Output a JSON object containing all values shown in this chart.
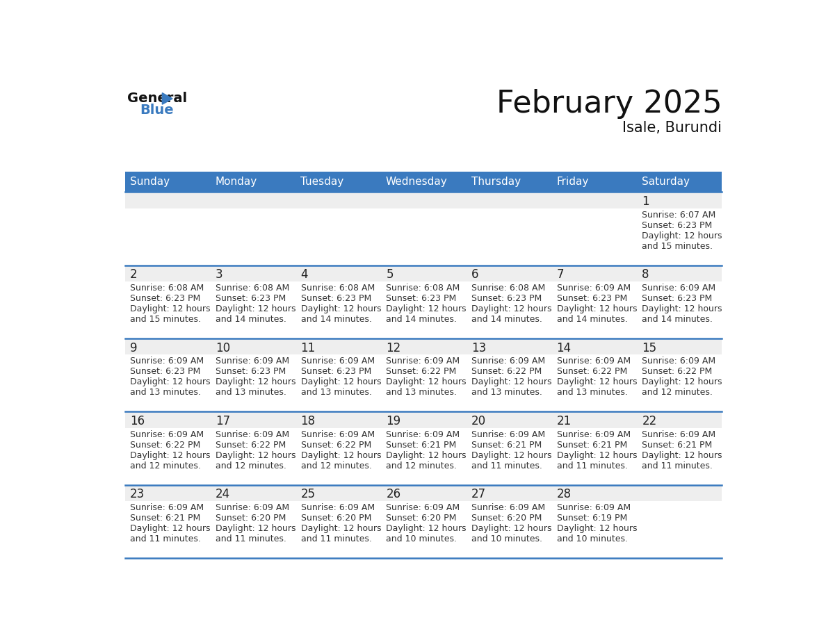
{
  "title": "February 2025",
  "subtitle": "Isale, Burundi",
  "header_bg": "#3a7abf",
  "header_text_color": "#ffffff",
  "cell_bg_gray": "#eeeeee",
  "cell_bg_white": "#ffffff",
  "day_number_color": "#222222",
  "text_color": "#333333",
  "line_color": "#3a7abf",
  "days_of_week": [
    "Sunday",
    "Monday",
    "Tuesday",
    "Wednesday",
    "Thursday",
    "Friday",
    "Saturday"
  ],
  "weeks": [
    [
      {
        "day": null,
        "info": null
      },
      {
        "day": null,
        "info": null
      },
      {
        "day": null,
        "info": null
      },
      {
        "day": null,
        "info": null
      },
      {
        "day": null,
        "info": null
      },
      {
        "day": null,
        "info": null
      },
      {
        "day": 1,
        "info": "Sunrise: 6:07 AM\nSunset: 6:23 PM\nDaylight: 12 hours\nand 15 minutes."
      }
    ],
    [
      {
        "day": 2,
        "info": "Sunrise: 6:08 AM\nSunset: 6:23 PM\nDaylight: 12 hours\nand 15 minutes."
      },
      {
        "day": 3,
        "info": "Sunrise: 6:08 AM\nSunset: 6:23 PM\nDaylight: 12 hours\nand 14 minutes."
      },
      {
        "day": 4,
        "info": "Sunrise: 6:08 AM\nSunset: 6:23 PM\nDaylight: 12 hours\nand 14 minutes."
      },
      {
        "day": 5,
        "info": "Sunrise: 6:08 AM\nSunset: 6:23 PM\nDaylight: 12 hours\nand 14 minutes."
      },
      {
        "day": 6,
        "info": "Sunrise: 6:08 AM\nSunset: 6:23 PM\nDaylight: 12 hours\nand 14 minutes."
      },
      {
        "day": 7,
        "info": "Sunrise: 6:09 AM\nSunset: 6:23 PM\nDaylight: 12 hours\nand 14 minutes."
      },
      {
        "day": 8,
        "info": "Sunrise: 6:09 AM\nSunset: 6:23 PM\nDaylight: 12 hours\nand 14 minutes."
      }
    ],
    [
      {
        "day": 9,
        "info": "Sunrise: 6:09 AM\nSunset: 6:23 PM\nDaylight: 12 hours\nand 13 minutes."
      },
      {
        "day": 10,
        "info": "Sunrise: 6:09 AM\nSunset: 6:23 PM\nDaylight: 12 hours\nand 13 minutes."
      },
      {
        "day": 11,
        "info": "Sunrise: 6:09 AM\nSunset: 6:23 PM\nDaylight: 12 hours\nand 13 minutes."
      },
      {
        "day": 12,
        "info": "Sunrise: 6:09 AM\nSunset: 6:22 PM\nDaylight: 12 hours\nand 13 minutes."
      },
      {
        "day": 13,
        "info": "Sunrise: 6:09 AM\nSunset: 6:22 PM\nDaylight: 12 hours\nand 13 minutes."
      },
      {
        "day": 14,
        "info": "Sunrise: 6:09 AM\nSunset: 6:22 PM\nDaylight: 12 hours\nand 13 minutes."
      },
      {
        "day": 15,
        "info": "Sunrise: 6:09 AM\nSunset: 6:22 PM\nDaylight: 12 hours\nand 12 minutes."
      }
    ],
    [
      {
        "day": 16,
        "info": "Sunrise: 6:09 AM\nSunset: 6:22 PM\nDaylight: 12 hours\nand 12 minutes."
      },
      {
        "day": 17,
        "info": "Sunrise: 6:09 AM\nSunset: 6:22 PM\nDaylight: 12 hours\nand 12 minutes."
      },
      {
        "day": 18,
        "info": "Sunrise: 6:09 AM\nSunset: 6:22 PM\nDaylight: 12 hours\nand 12 minutes."
      },
      {
        "day": 19,
        "info": "Sunrise: 6:09 AM\nSunset: 6:21 PM\nDaylight: 12 hours\nand 12 minutes."
      },
      {
        "day": 20,
        "info": "Sunrise: 6:09 AM\nSunset: 6:21 PM\nDaylight: 12 hours\nand 11 minutes."
      },
      {
        "day": 21,
        "info": "Sunrise: 6:09 AM\nSunset: 6:21 PM\nDaylight: 12 hours\nand 11 minutes."
      },
      {
        "day": 22,
        "info": "Sunrise: 6:09 AM\nSunset: 6:21 PM\nDaylight: 12 hours\nand 11 minutes."
      }
    ],
    [
      {
        "day": 23,
        "info": "Sunrise: 6:09 AM\nSunset: 6:21 PM\nDaylight: 12 hours\nand 11 minutes."
      },
      {
        "day": 24,
        "info": "Sunrise: 6:09 AM\nSunset: 6:20 PM\nDaylight: 12 hours\nand 11 minutes."
      },
      {
        "day": 25,
        "info": "Sunrise: 6:09 AM\nSunset: 6:20 PM\nDaylight: 12 hours\nand 11 minutes."
      },
      {
        "day": 26,
        "info": "Sunrise: 6:09 AM\nSunset: 6:20 PM\nDaylight: 12 hours\nand 10 minutes."
      },
      {
        "day": 27,
        "info": "Sunrise: 6:09 AM\nSunset: 6:20 PM\nDaylight: 12 hours\nand 10 minutes."
      },
      {
        "day": 28,
        "info": "Sunrise: 6:09 AM\nSunset: 6:19 PM\nDaylight: 12 hours\nand 10 minutes."
      },
      {
        "day": null,
        "info": null
      }
    ]
  ],
  "logo_text_general": "General",
  "logo_text_blue": "Blue",
  "logo_triangle_color": "#3a7abf",
  "title_fontsize": 32,
  "subtitle_fontsize": 15,
  "header_fontsize": 11,
  "day_num_fontsize": 12,
  "info_fontsize": 9
}
